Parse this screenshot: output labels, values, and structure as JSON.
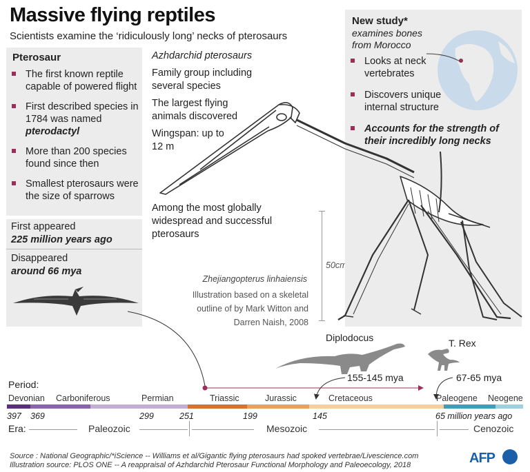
{
  "header": {
    "title": "Massive flying reptiles",
    "subtitle": "Scientists examine the  ‘ridiculously long’ necks of pterosaurs"
  },
  "pterosaur_box": {
    "heading": "Pterosaur",
    "items": [
      {
        "text": "The first known reptile capable of powered flight",
        "emph": ""
      },
      {
        "text": "First described species in 1784 was named ",
        "emph": "pterodactyl"
      },
      {
        "text": "More than 200 species found since then",
        "emph": ""
      },
      {
        "text": "Smallest pterosaurs were the size of sparrows",
        "emph": ""
      }
    ]
  },
  "timeline_box": {
    "first_label": "First appeared",
    "first_value": "225 million years ago",
    "dis_label": "Disappeared",
    "dis_value": "around 66 mya"
  },
  "azhdarchid": {
    "heading": "Azhdarchid pterosaurs",
    "p1": "Family group including several species",
    "p2": "The largest flying animals discovered",
    "p3": "Wingspan: up to 12 m",
    "p4": "Among the most globally widespread and successful pterosaurs"
  },
  "specimen": {
    "name": "Zhejiangopterus linhaiensis",
    "credit": "Illustration based on a skeletal outline of by Mark Witton and Darren Naish, 2008",
    "scale": "50cm"
  },
  "study_box": {
    "heading": "New study*",
    "sub": "examines bones from Morocco",
    "items": [
      {
        "text": "Looks at neck vertebrates",
        "bold": false
      },
      {
        "text": "Discovers unique internal structure",
        "bold": false
      },
      {
        "text": "Accounts for the strength of their incredibly long necks",
        "bold": true
      }
    ]
  },
  "dinos": {
    "diplodocus": "Diplodocus",
    "diplodocus_range": "155-145 mya",
    "trex": "T. Rex",
    "trex_range": "67-65 mya"
  },
  "timeline": {
    "period_label": "Period:",
    "era_label": "Era:",
    "periods": [
      {
        "name": "Devonian",
        "color": "#5b2d83"
      },
      {
        "name": "Carboniferous",
        "color": "#8a63ad"
      },
      {
        "name": "Permian",
        "color": "#c3aed6"
      },
      {
        "name": "Triassic",
        "color": "#d8732e"
      },
      {
        "name": "Jurassic",
        "color": "#eaa15e"
      },
      {
        "name": "Cretaceous",
        "color": "#f6cfa0"
      },
      {
        "name": "Paleogene",
        "color": "#3d9fb8"
      },
      {
        "name": "Neogene",
        "color": "#9ed0e0"
      }
    ],
    "ticks": [
      "397",
      "369",
      "299",
      "251",
      "199",
      "145",
      "65 million years ago"
    ],
    "eras": [
      "Paleozoic",
      "Mesozoic",
      "Cenozoic"
    ]
  },
  "footer": {
    "source1": "Source : National Geographic/*iScience -- Williams et al/Gigantic flying pterosaurs had spoked vertebrae/Livescience.com",
    "source2": "Illustration source: PLOS ONE -- A reappraisal of Azhdarchid Pterosaur Functional Morphology and Paleoecology, 2018",
    "logo": "AFP"
  },
  "colors": {
    "accent": "#9b2f5a",
    "panel": "#ececec",
    "afp_blue": "#1b5fa8"
  }
}
